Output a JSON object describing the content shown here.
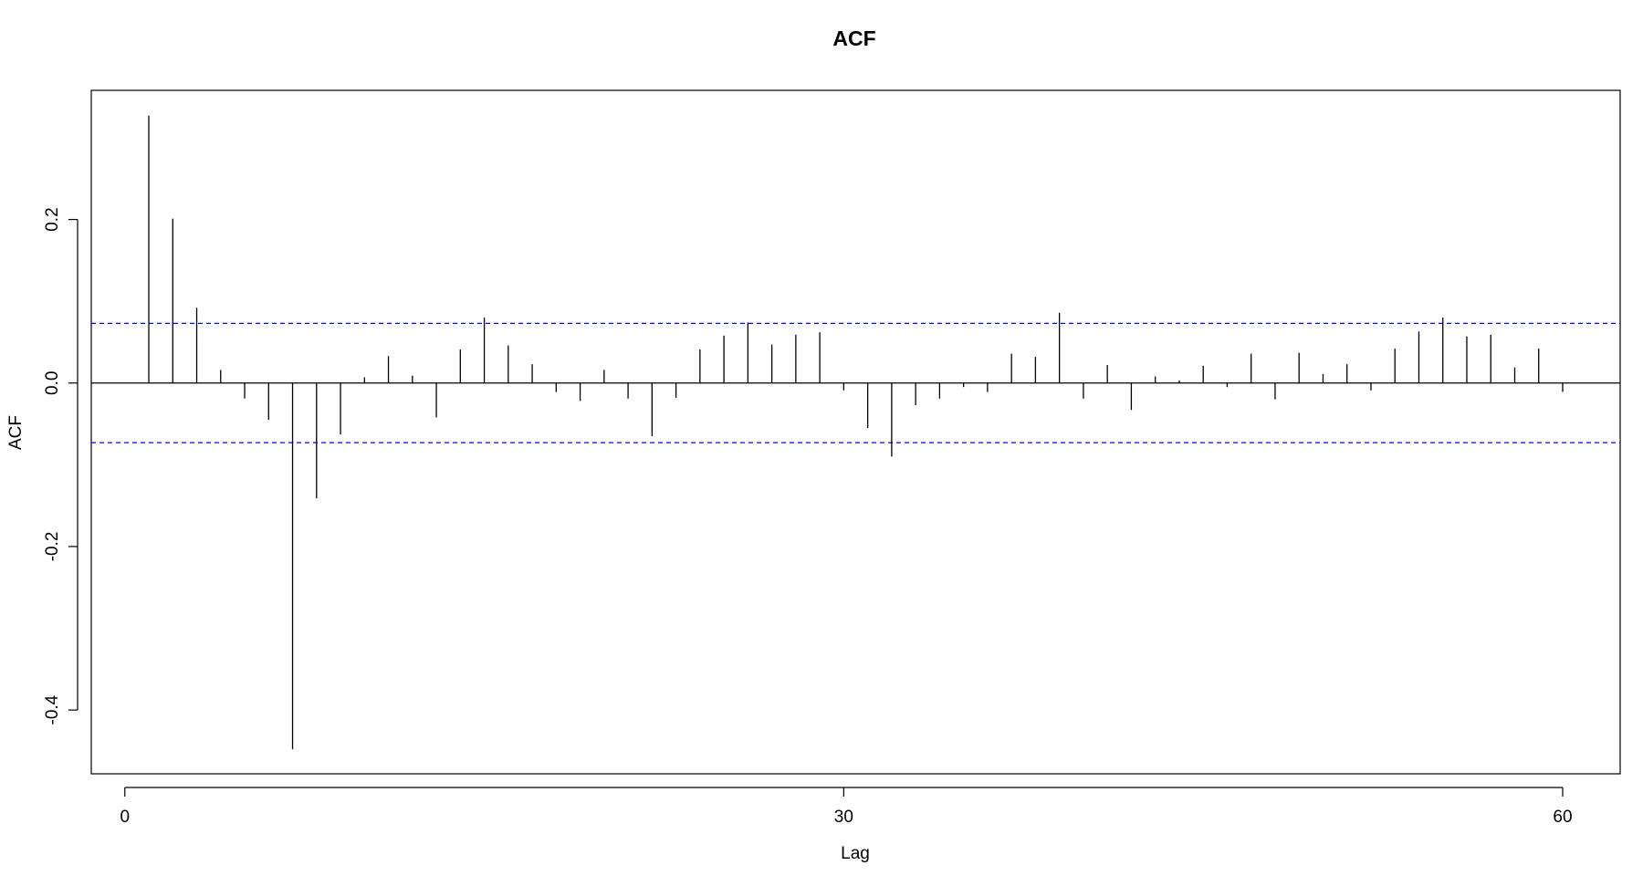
{
  "chart_data": {
    "type": "bar",
    "title": "ACF",
    "xlabel": "Lag",
    "ylabel": "ACF",
    "xlim": [
      -1.4,
      62.4
    ],
    "ylim": [
      -0.478,
      0.358
    ],
    "x_ticks": [
      {
        "value": 0,
        "label": "0"
      },
      {
        "value": 30,
        "label": "30"
      },
      {
        "value": 60,
        "label": "60"
      }
    ],
    "y_ticks": [
      {
        "value": 0.2,
        "label": "0.2"
      },
      {
        "value": 0.0,
        "label": "0.0"
      },
      {
        "value": -0.2,
        "label": "-0.2"
      },
      {
        "value": -0.4,
        "label": "-0.4"
      }
    ],
    "confidence_limits": [
      0.073,
      -0.073
    ],
    "colors": {
      "bars": "#000000",
      "confidence": "#0000ff",
      "zero_line": "#000000",
      "frame": "#000000"
    },
    "lags": [
      1,
      2,
      3,
      4,
      5,
      6,
      7,
      8,
      9,
      10,
      11,
      12,
      13,
      14,
      15,
      16,
      17,
      18,
      19,
      20,
      21,
      22,
      23,
      24,
      25,
      26,
      27,
      28,
      29,
      30,
      31,
      32,
      33,
      34,
      35,
      36,
      37,
      38,
      39,
      40,
      41,
      42,
      43,
      44,
      45,
      46,
      47,
      48,
      49,
      50,
      51,
      52,
      53,
      54,
      55,
      56,
      57,
      58,
      59,
      60
    ],
    "values": [
      0.327,
      0.201,
      0.092,
      0.016,
      -0.019,
      -0.045,
      -0.448,
      -0.141,
      -0.063,
      0.007,
      0.033,
      0.009,
      -0.042,
      0.041,
      0.08,
      0.046,
      0.023,
      -0.011,
      -0.022,
      0.016,
      -0.019,
      -0.065,
      -0.018,
      0.041,
      0.058,
      0.074,
      0.047,
      0.059,
      0.062,
      -0.009,
      -0.055,
      -0.09,
      -0.027,
      -0.019,
      -0.005,
      -0.011,
      0.036,
      0.032,
      0.086,
      -0.019,
      0.022,
      -0.033,
      0.008,
      0.003,
      0.021,
      -0.005,
      0.036,
      -0.02,
      0.037,
      0.011,
      0.023,
      -0.009,
      0.042,
      0.063,
      0.08,
      0.057,
      0.059,
      0.019,
      0.042,
      -0.011
    ]
  }
}
